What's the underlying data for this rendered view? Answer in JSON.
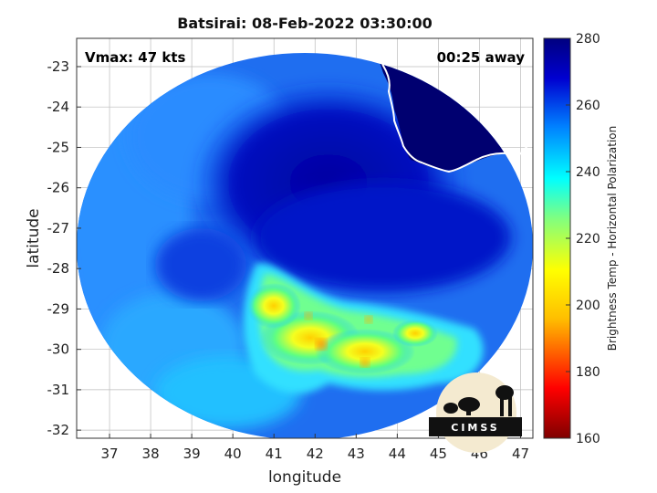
{
  "chart_data": {
    "type": "heatmap",
    "title": "Batsirai: 08-Feb-2022 03:30:00",
    "xlabel": "longitude",
    "ylabel": "latitude",
    "xlim": [
      36.2,
      47.3
    ],
    "ylim": [
      -32.2,
      -22.3
    ],
    "x_ticks": [
      37,
      38,
      39,
      40,
      41,
      42,
      43,
      44,
      45,
      46,
      47
    ],
    "y_ticks": [
      -23,
      -24,
      -25,
      -26,
      -27,
      -28,
      -29,
      -30,
      -31,
      -32
    ],
    "grid": true,
    "colorbar": {
      "label": "Brightness Temp - Horizontal Polarization",
      "range": [
        160,
        280
      ],
      "ticks": [
        280,
        260,
        240,
        220,
        200,
        180,
        160
      ],
      "colors": [
        "#7f0000",
        "#ff0000",
        "#ffbf00",
        "#ffff00",
        "#80ff80",
        "#00ffff",
        "#0080ff",
        "#0000d0",
        "#00007f"
      ]
    },
    "annotations": {
      "vmax": "Vmax: 47 kts",
      "time_offset": "00:25 away"
    },
    "logo": "CIMSS"
  }
}
